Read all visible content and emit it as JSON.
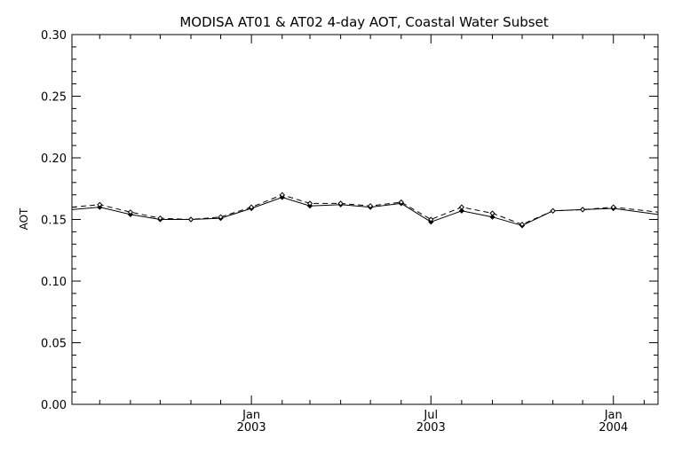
{
  "chart_data": {
    "type": "line",
    "title": "MODISA AT01 & AT02 4-day AOT, Coastal Water Subset",
    "xlabel": "",
    "ylabel": "AOT",
    "ylim": [
      0.0,
      0.3
    ],
    "xlim": [
      "2002-07-04",
      "2004-02-15"
    ],
    "grid": false,
    "y_ticks": [
      "0.00",
      "0.05",
      "0.10",
      "0.15",
      "0.20",
      "0.25",
      "0.30"
    ],
    "x_major_ticks": [
      {
        "date": "2003-01-01",
        "label_top": "Jan",
        "label_bottom": "2003"
      },
      {
        "date": "2003-07-01",
        "label_top": "Jul",
        "label_bottom": "2003"
      },
      {
        "date": "2004-01-01",
        "label_top": "Jan",
        "label_bottom": "2004"
      }
    ],
    "series": [
      {
        "style": "solid",
        "x": [
          "2002-07-04",
          "2002-08-01",
          "2002-09-01",
          "2002-10-01",
          "2002-11-01",
          "2002-12-01",
          "2003-01-01",
          "2003-02-01",
          "2003-03-01",
          "2003-04-01",
          "2003-05-01",
          "2003-06-01",
          "2003-07-01",
          "2003-08-01",
          "2003-09-01",
          "2003-10-01",
          "2003-11-01",
          "2003-12-01",
          "2004-01-01",
          "2004-02-15"
        ],
        "values": [
          0.158,
          0.16,
          0.154,
          0.15,
          0.15,
          0.151,
          0.159,
          0.168,
          0.161,
          0.162,
          0.16,
          0.163,
          0.148,
          0.157,
          0.152,
          0.145,
          0.157,
          0.158,
          0.159,
          0.154
        ]
      },
      {
        "style": "dashed",
        "x": [
          "2002-07-04",
          "2002-08-01",
          "2002-09-01",
          "2002-10-01",
          "2002-11-01",
          "2002-12-01",
          "2003-01-01",
          "2003-02-01",
          "2003-03-01",
          "2003-04-01",
          "2003-05-01",
          "2003-06-01",
          "2003-07-01",
          "2003-08-01",
          "2003-09-01",
          "2003-10-01",
          "2003-11-01",
          "2003-12-01",
          "2004-01-01",
          "2004-02-15"
        ],
        "values": [
          0.16,
          0.162,
          0.156,
          0.151,
          0.15,
          0.152,
          0.16,
          0.17,
          0.163,
          0.163,
          0.161,
          0.164,
          0.15,
          0.16,
          0.155,
          0.146,
          0.157,
          0.158,
          0.16,
          0.156
        ]
      }
    ]
  }
}
